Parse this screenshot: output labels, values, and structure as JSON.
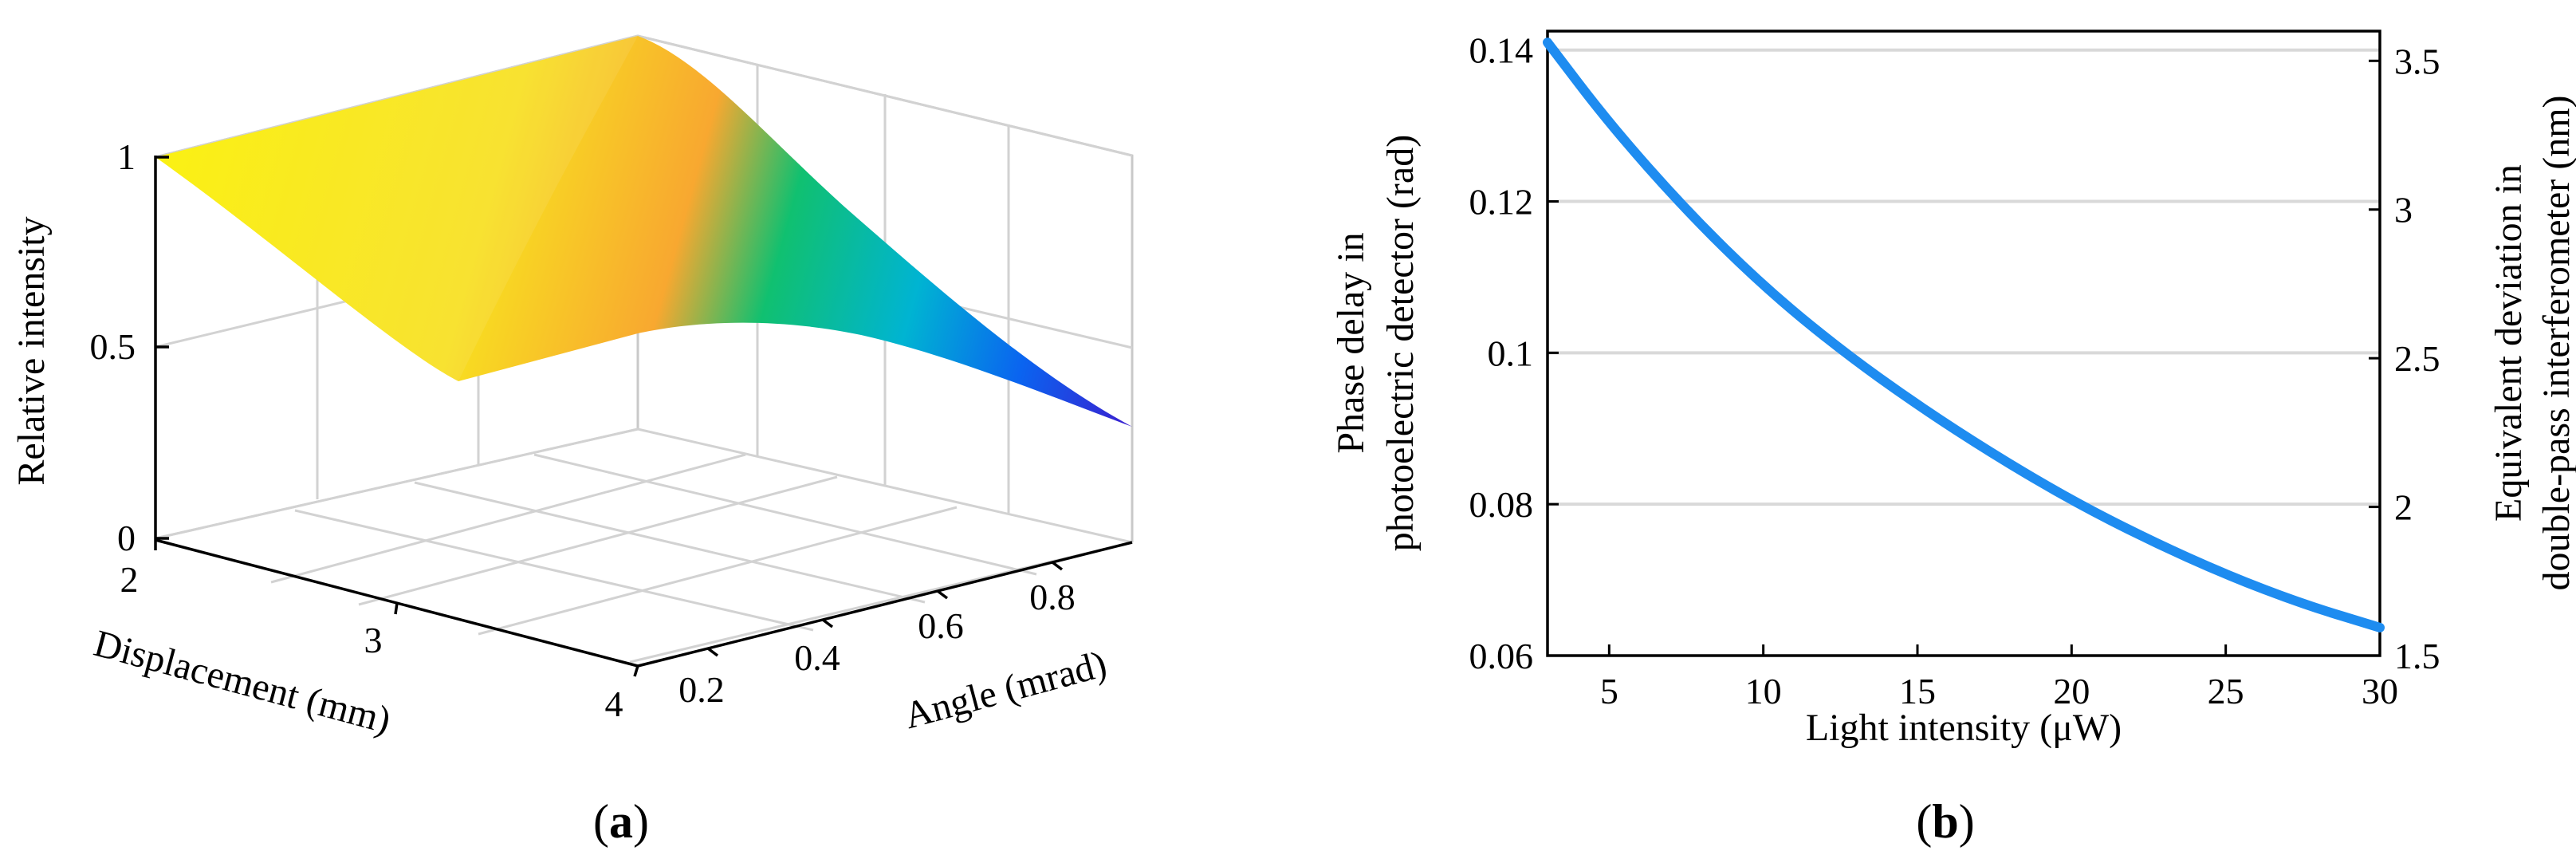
{
  "chart_data": [
    {
      "panel": "a",
      "type": "surface",
      "panel_label": "(a)",
      "zlabel": "Relative intensity",
      "xlabel": "Displacement (mm)",
      "ylabel": "Angle (mrad)",
      "z_ticks": [
        "0",
        "0.5",
        "1"
      ],
      "x_ticks": [
        "2",
        "3",
        "4"
      ],
      "y_ticks": [
        "0.2",
        "0.4",
        "0.6",
        "0.8"
      ],
      "xlim": [
        2,
        4
      ],
      "ylim": [
        0.1,
        0.9
      ],
      "zlim": [
        0,
        1
      ],
      "colormap": [
        "#3a1fd0",
        "#0a64f0",
        "#00b4d2",
        "#10c070",
        "#f8a830",
        "#faf000"
      ],
      "corner_values": [
        {
          "displacement": 2,
          "angle": 0.1,
          "relative_intensity": 1.0
        },
        {
          "displacement": 2,
          "angle": 0.9,
          "relative_intensity": 1.0
        },
        {
          "displacement": 4,
          "angle": 0.1,
          "relative_intensity": 0.55
        },
        {
          "displacement": 4,
          "angle": 0.9,
          "relative_intensity": 0.3
        }
      ]
    },
    {
      "panel": "b",
      "type": "line",
      "panel_label": "(b)",
      "xlabel": "Light intensity (μW)",
      "ylabel_line1": "Phase delay in",
      "ylabel_line2": "photoelectric detector (rad)",
      "y2label_line1": "Equivalent  deviation in",
      "y2label_line2": "double-pass interferometer (nm)",
      "xlim": [
        3,
        30
      ],
      "ylim": [
        0.06,
        0.1425
      ],
      "y2lim": [
        1.5,
        3.6
      ],
      "x_ticks": [
        5,
        10,
        15,
        20,
        25,
        30
      ],
      "y_ticks": [
        0.06,
        0.08,
        0.1,
        0.12,
        0.14
      ],
      "y_tick_labels": [
        "0.06",
        "0.08",
        "0.1",
        "0.12",
        "0.14"
      ],
      "y2_ticks": [
        1.5,
        2,
        2.5,
        3,
        3.5
      ],
      "y2_tick_labels": [
        "1.5",
        "2",
        "2.5",
        "3",
        "3.5"
      ],
      "line_color": "#1e8cf0",
      "series": [
        {
          "name": "Phase delay",
          "x": [
            3,
            5,
            7.5,
            10,
            12.5,
            15,
            17.5,
            20,
            22.5,
            25,
            27.5,
            30
          ],
          "y": [
            0.141,
            0.1303,
            0.1188,
            0.1088,
            0.1004,
            0.0931,
            0.0865,
            0.0805,
            0.0753,
            0.0707,
            0.0668,
            0.0637
          ]
        }
      ]
    }
  ]
}
